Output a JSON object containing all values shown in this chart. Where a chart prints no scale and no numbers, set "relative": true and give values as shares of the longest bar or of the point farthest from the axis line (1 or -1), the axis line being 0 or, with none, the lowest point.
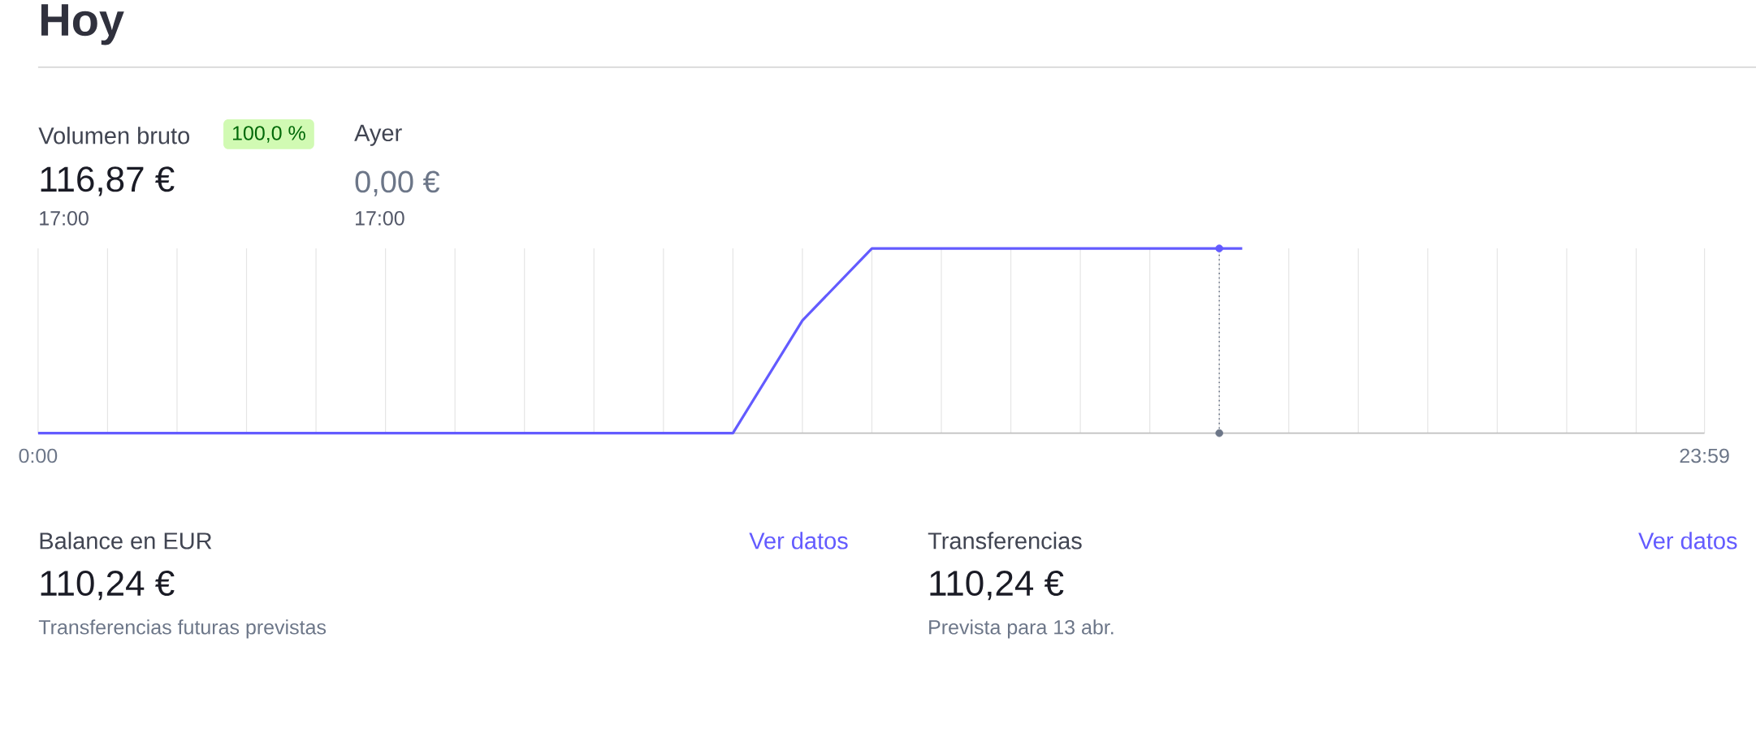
{
  "chart_data": {
    "type": "line",
    "title": "Hoy",
    "relative": true,
    "series": [
      {
        "color": "#635bff",
        "x": [
          0,
          10,
          11,
          12,
          17.33
        ],
        "values": [
          0,
          0,
          0.61,
          1,
          1
        ]
      },
      {
        "type": "scatter",
        "marker": "circle",
        "x": [
          17,
          17
        ],
        "values": [
          0,
          1
        ],
        "colors": [
          "#6c7688",
          "#635bff"
        ]
      }
    ],
    "xlim": [
      0,
      23.983
    ],
    "xticks": [
      {
        "value": 0,
        "label": "0:00"
      },
      {
        "value": 1,
        "label": null
      },
      {
        "value": 2,
        "label": null
      },
      {
        "value": 3,
        "label": null
      },
      {
        "value": 4,
        "label": null
      },
      {
        "value": 5,
        "label": null
      },
      {
        "value": 6,
        "label": null
      },
      {
        "value": 7,
        "label": null
      },
      {
        "value": 8,
        "label": null
      },
      {
        "value": 9,
        "label": null
      },
      {
        "value": 10,
        "label": null
      },
      {
        "value": 11,
        "label": null
      },
      {
        "value": 12,
        "label": null
      },
      {
        "value": 13,
        "label": null
      },
      {
        "value": 14,
        "label": null
      },
      {
        "value": 15,
        "label": null
      },
      {
        "value": 16,
        "label": null
      },
      {
        "value": 17,
        "label": null
      },
      {
        "value": 18,
        "label": null
      },
      {
        "value": 19,
        "label": null
      },
      {
        "value": 20,
        "label": null
      },
      {
        "value": 21,
        "label": null
      },
      {
        "value": 22,
        "label": null
      },
      {
        "value": 23,
        "label": null
      },
      {
        "value": 23.983,
        "label": "23:59"
      }
    ],
    "grid": "x",
    "ref_lines": [
      {
        "axis": "x",
        "value": 17,
        "color": "#6c7688",
        "line_style": "dotted"
      }
    ],
    "annotations": [
      "Volumen bruto",
      "100,0 %",
      "116,87 €",
      "17:00",
      "Ayer",
      "0,00 €",
      "17:00",
      "Balance en EUR",
      "Ver datos",
      "110,24 €",
      "Transferencias futuras previstas",
      "Transferencias",
      "Ver datos",
      "110,24 €",
      "Prevista para 13 abr."
    ]
  }
}
